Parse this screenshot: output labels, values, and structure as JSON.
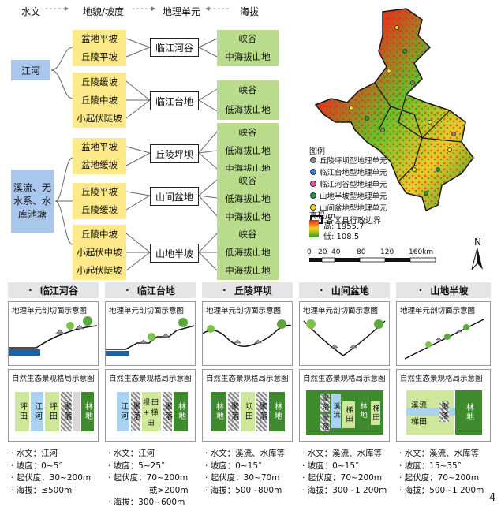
{
  "header": {
    "hydro": "水文",
    "landform": "地貌/坡度",
    "unit": "地理单元",
    "altitude": "海拔"
  },
  "left": {
    "jianghe": "江河",
    "xiliu": "溪流、无水系、水库池塘"
  },
  "groups": [
    {
      "slopes": [
        "盆地平坡",
        "丘陵平坡"
      ],
      "unit": "临江河谷",
      "alts": [
        "峡谷",
        "中海拔山地"
      ]
    },
    {
      "slopes": [
        "丘陵缓坡",
        "丘陵中坡",
        "小起伏陡坡"
      ],
      "unit": "临江台地",
      "alts": [
        "峡谷",
        "低海拔山地"
      ]
    },
    {
      "slopes": [
        "盆地平坡",
        "盆地缓坡"
      ],
      "unit": "丘陵坪坝",
      "alts": [
        "峡谷",
        "低海拔山地",
        "中海拔山地"
      ]
    },
    {
      "slopes": [
        "丘陵平坡",
        "丘陵缓坡"
      ],
      "unit": "山间盆地",
      "alts": [
        "峡谷",
        "低海拔山地",
        "中海拔山地"
      ]
    },
    {
      "slopes": [
        "丘陵中坡",
        "小起伏中坡",
        "小起伏陡坡"
      ],
      "unit": "山地半坡",
      "alts": [
        "峡谷",
        "低海拔山地",
        "中海拔山地"
      ]
    }
  ],
  "map": {
    "legend_title": "图例",
    "legend_items": [
      {
        "label": "丘陵坪坝型地理单元",
        "color": "#8a8a8a"
      },
      {
        "label": "临江台地型地理单元",
        "color": "#3d7fd0"
      },
      {
        "label": "临江河谷型地理单元",
        "color": "#e64f9a"
      },
      {
        "label": "山地半坡型地理单元",
        "color": "#1b9a3c"
      },
      {
        "label": "山间盆地型地理单元",
        "color": "#f3df2b"
      }
    ],
    "boundary_label": "各区县行政边界",
    "elev_title": "高程/m",
    "elev_high": "高: 1955.7",
    "elev_low": "低: 108.5",
    "scale_ticks": [
      "0",
      "20",
      "40",
      "80",
      "120",
      "160km"
    ],
    "north": "N"
  },
  "panels": [
    {
      "title": "临江河谷",
      "section": "地理单元剖切面示意图",
      "pattern": "自然生态景观格局示意图",
      "cells": [
        "坪田",
        "江河",
        "坪田",
        "聚落",
        "",
        "林地"
      ],
      "stats": [
        "水文：江河",
        "坡度：0~5°",
        "起伏度：30~200m",
        "海拔：≤500m"
      ]
    },
    {
      "title": "临江台地",
      "section": "地理单元剖切面示意图",
      "pattern": "自然生态景观格局示意图",
      "cells": [
        "江河",
        "聚落",
        "坝田+梯田",
        "聚落",
        "林地"
      ],
      "stats": [
        "水文：江河",
        "坡度：5~25°",
        "起伏度：70~200m",
        "或>200m",
        "海拔：300~600m"
      ]
    },
    {
      "title": "丘陵坪坝",
      "section": "地理单元剖切面示意图",
      "pattern": "自然生态景观格局示意图",
      "cells": [
        "林地",
        "聚落",
        "坝田",
        "聚落",
        "林地"
      ],
      "stats": [
        "水文：溪流、水库等",
        "坡度：0~15°",
        "起伏度：30~70m",
        "海拔：500~800m"
      ]
    },
    {
      "title": "山间盆地",
      "section": "地理单元剖切面示意图",
      "pattern": "自然生态景观格局示意图",
      "cells": [
        "聚落",
        "溪流",
        "梯田",
        "林地",
        "聚落",
        "梯田"
      ],
      "stats": [
        "水文：溪流、水库等",
        "坡度：0~15°",
        "起伏度：70~200m",
        "海拔：300~1 200m"
      ]
    },
    {
      "title": "山地半坡",
      "section": "地理单元剖切面示意图",
      "pattern": "自然生态景观格局示意图",
      "cells": [
        "溪流",
        "梯田",
        "聚落",
        "林地"
      ],
      "stats": [
        "水文：溪流、水库等",
        "坡度：15~35°",
        "起伏度：70~200m",
        "海拔：500~1 200m"
      ]
    }
  ],
  "page_number": "4",
  "colors": {
    "blue": "#a9c7ec",
    "yellow": "#fde98a",
    "green": "#b8dc8c",
    "panel_grey": "#e5e5e5",
    "forest": "#3f8a2e",
    "field": "#cfe79a",
    "water": "#a9d3f0"
  }
}
